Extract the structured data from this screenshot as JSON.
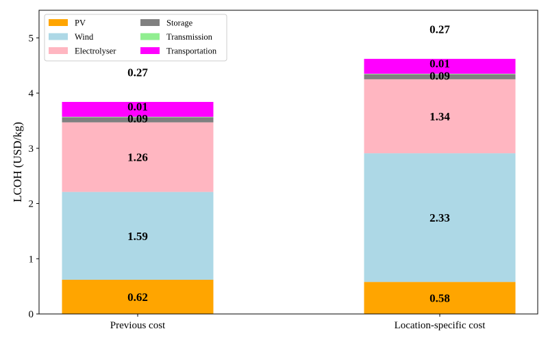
{
  "chart_data": {
    "type": "bar",
    "stacked": true,
    "categories": [
      "Previous cost",
      "Location-specific cost"
    ],
    "ylabel": "LCOH (USD/kg)",
    "ylim": [
      0,
      5.5
    ],
    "yticks": [
      0,
      1,
      2,
      3,
      4,
      5
    ],
    "grid": false,
    "legend_position": "top-left",
    "series": [
      {
        "name": "PV",
        "color": "#FFA500",
        "values": [
          0.62,
          0.58
        ],
        "labels": [
          "0.62",
          "0.58"
        ]
      },
      {
        "name": "Wind",
        "color": "#ADD8E6",
        "values": [
          1.59,
          2.33
        ],
        "labels": [
          "1.59",
          "2.33"
        ]
      },
      {
        "name": "Electrolyser",
        "color": "#FFB6C1",
        "values": [
          1.26,
          1.34
        ],
        "labels": [
          "1.26",
          "1.34"
        ]
      },
      {
        "name": "Storage",
        "color": "#808080",
        "values": [
          0.09,
          0.09
        ],
        "labels": [
          "0.09",
          "0.09"
        ]
      },
      {
        "name": "Transmission",
        "color": "#90EE90",
        "values": [
          0.01,
          0.01
        ],
        "labels": [
          "0.01",
          "0.01"
        ]
      },
      {
        "name": "Transportation",
        "color": "#FF00FF",
        "values": [
          0.27,
          0.27
        ],
        "labels": [
          "0.27",
          "0.27"
        ]
      }
    ]
  }
}
